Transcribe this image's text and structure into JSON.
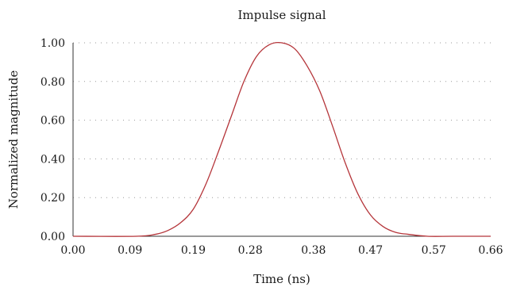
{
  "chart_data": {
    "type": "line",
    "title": "Impulse signal",
    "xlabel": "Time (ns)",
    "ylabel": "Normalized magnitude",
    "xlim": [
      0,
      0.66
    ],
    "ylim": [
      0,
      1.0
    ],
    "x_ticks": [
      "0.00",
      "0.09",
      "0.19",
      "0.28",
      "0.38",
      "0.47",
      "0.57",
      "0.66"
    ],
    "y_ticks": [
      "0.00",
      "0.20",
      "0.40",
      "0.60",
      "0.80",
      "1.00"
    ],
    "grid": "horizontal-dotted",
    "series": [
      {
        "color": "#b5353a",
        "x": [
          0,
          0.1,
          0.13,
          0.15,
          0.17,
          0.19,
          0.21,
          0.23,
          0.25,
          0.27,
          0.29,
          0.31,
          0.33,
          0.35,
          0.37,
          0.39,
          0.41,
          0.43,
          0.45,
          0.47,
          0.49,
          0.51,
          0.53,
          0.56,
          0.6,
          0.66
        ],
        "y": [
          0.0,
          0.0,
          0.01,
          0.03,
          0.07,
          0.14,
          0.27,
          0.44,
          0.62,
          0.8,
          0.93,
          0.99,
          1.0,
          0.97,
          0.88,
          0.75,
          0.57,
          0.38,
          0.22,
          0.11,
          0.05,
          0.02,
          0.01,
          0.0,
          0.0,
          0.0
        ]
      }
    ]
  }
}
